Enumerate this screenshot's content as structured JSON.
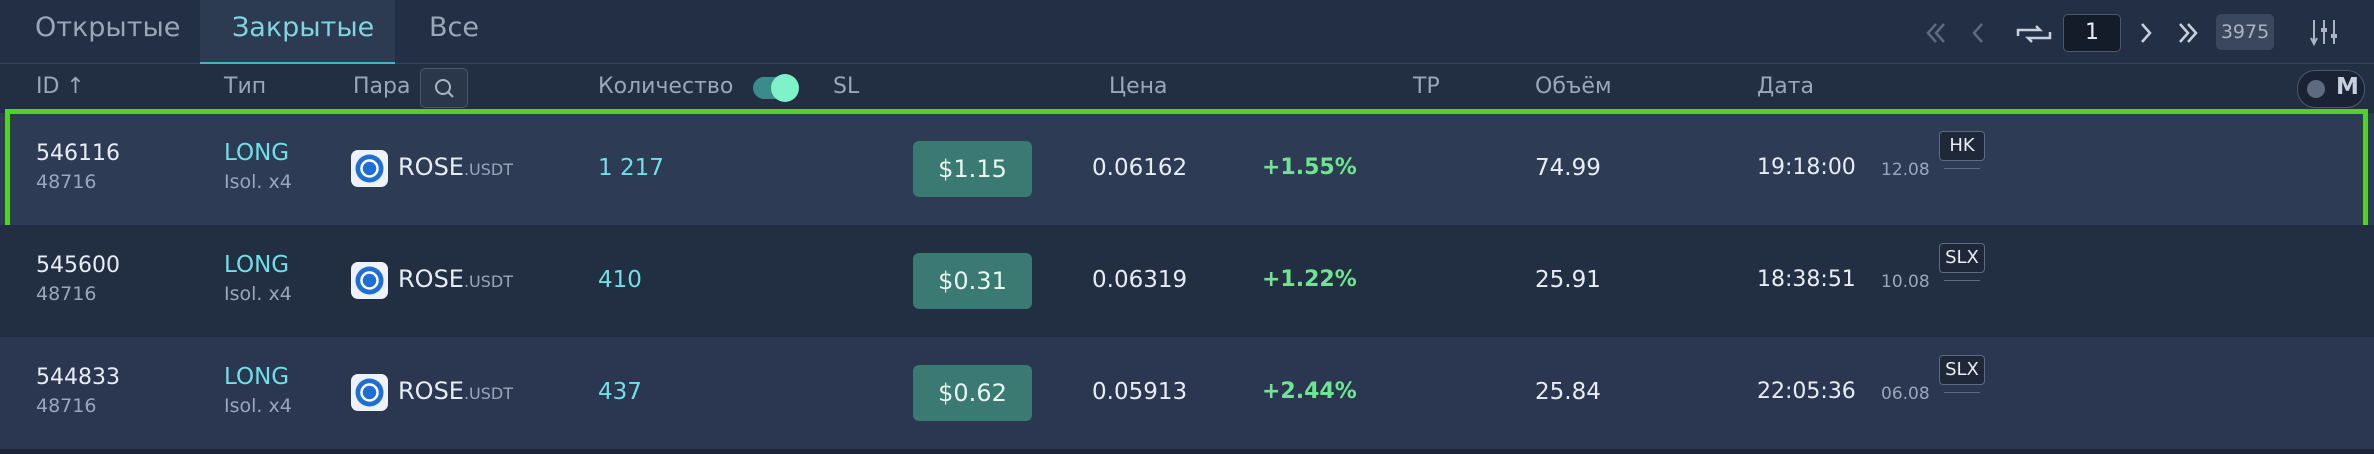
{
  "tabs": [
    "Открытые",
    "Закрытые",
    "Все"
  ],
  "active_tab": 1,
  "pagination": {
    "page": "1",
    "total": "3975"
  },
  "headers": [
    "ID ↑",
    "Тип",
    "Пара",
    "Количество",
    "SL",
    "Цена",
    "TP",
    "Объём",
    "Дата"
  ],
  "mode_label": "M",
  "selected_row": 0,
  "rows": [
    {
      "id": "546116",
      "account": "48716",
      "side": "LONG",
      "margin": "Isol. x4",
      "base": "ROSE",
      "quote": ".USDT",
      "quantity": "1 217",
      "sl": "$1.15",
      "price": "0.06162",
      "change": "+1.55%",
      "volume": "74.99",
      "time": "19:18:00",
      "date": "12.08",
      "exchange": "HK"
    },
    {
      "id": "545600",
      "account": "48716",
      "side": "LONG",
      "margin": "Isol. x4",
      "base": "ROSE",
      "quote": ".USDT",
      "quantity": "410",
      "sl": "$0.31",
      "price": "0.06319",
      "change": "+1.22%",
      "volume": "25.91",
      "time": "18:38:51",
      "date": "10.08",
      "exchange": "SLX"
    },
    {
      "id": "544833",
      "account": "48716",
      "side": "LONG",
      "margin": "Isol. x4",
      "base": "ROSE",
      "quote": ".USDT",
      "quantity": "437",
      "sl": "$0.62",
      "price": "0.05913",
      "change": "+2.44%",
      "volume": "25.84",
      "time": "22:05:36",
      "date": "06.08",
      "exchange": "SLX"
    }
  ]
}
